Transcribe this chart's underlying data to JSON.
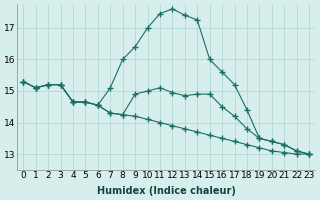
{
  "xlabel": "Humidex (Indice chaleur)",
  "bg_color": "#d6efed",
  "grid_color": "#b4d9d5",
  "line_color": "#1a6e65",
  "xlim": [
    -0.5,
    23.5
  ],
  "ylim": [
    12.5,
    17.75
  ],
  "yticks": [
    13,
    14,
    15,
    16,
    17
  ],
  "xticks": [
    0,
    1,
    2,
    3,
    4,
    5,
    6,
    7,
    8,
    9,
    10,
    11,
    12,
    13,
    14,
    15,
    16,
    17,
    18,
    19,
    20,
    21,
    22,
    23
  ],
  "series": {
    "x": [
      0,
      1,
      2,
      3,
      4,
      5,
      6,
      7,
      8,
      9,
      10,
      11,
      12,
      13,
      14,
      15,
      16,
      17,
      18,
      19,
      20,
      21,
      22,
      23
    ],
    "line1": [
      15.3,
      15.1,
      15.2,
      15.2,
      14.65,
      14.65,
      14.55,
      14.3,
      14.25,
      14.2,
      14.1,
      14.0,
      13.9,
      13.8,
      13.7,
      13.6,
      13.5,
      13.4,
      13.3,
      13.2,
      13.1,
      13.05,
      13.0,
      13.0
    ],
    "line2": [
      15.3,
      15.1,
      15.2,
      15.2,
      14.65,
      14.65,
      14.55,
      15.1,
      16.0,
      16.4,
      17.0,
      17.45,
      17.6,
      17.4,
      17.25,
      16.0,
      15.6,
      15.2,
      14.4,
      13.5,
      13.4,
      13.3,
      13.1,
      13.0
    ],
    "line3": [
      15.3,
      15.1,
      15.2,
      15.2,
      14.65,
      14.65,
      14.55,
      14.3,
      14.25,
      14.9,
      15.0,
      15.1,
      14.95,
      14.85,
      14.9,
      14.9,
      14.5,
      14.2,
      13.8,
      13.5,
      13.4,
      13.3,
      13.1,
      13.0
    ]
  },
  "font_size_label": 7,
  "tick_font_size": 6.5
}
